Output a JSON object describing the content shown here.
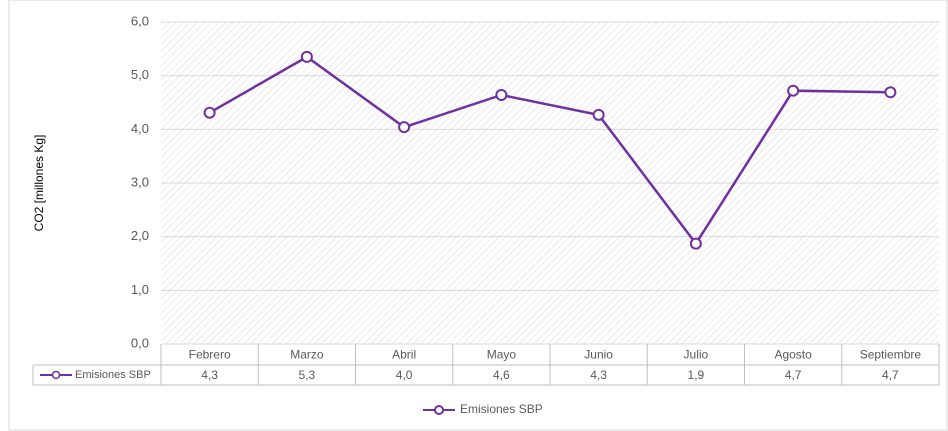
{
  "chart_data": {
    "type": "line",
    "y_label": "CO2 [millones Kg]",
    "categories": [
      "Febrero",
      "Marzo",
      "Abril",
      "Mayo",
      "Junio",
      "Julio",
      "Agosto",
      "Septiembre"
    ],
    "series": [
      {
        "name": "Emisiones SBP",
        "color": "#7030a0",
        "values": [
          4.31,
          5.35,
          4.04,
          4.64,
          4.27,
          1.87,
          4.72,
          4.69
        ],
        "value_labels": [
          "4,3",
          "5,3",
          "4,0",
          "4,6",
          "4,3",
          "1,9",
          "4,7",
          "4,7"
        ]
      }
    ],
    "ylim": [
      0,
      6
    ],
    "yticks": [
      {
        "value": 0,
        "label": "0,0"
      },
      {
        "value": 1,
        "label": "1,0"
      },
      {
        "value": 2,
        "label": "2,0"
      },
      {
        "value": 3,
        "label": "3,0"
      },
      {
        "value": 4,
        "label": "4,0"
      },
      {
        "value": 5,
        "label": "5,0"
      },
      {
        "value": 6,
        "label": "6,0"
      }
    ],
    "grid": true,
    "legend": "bottom"
  }
}
